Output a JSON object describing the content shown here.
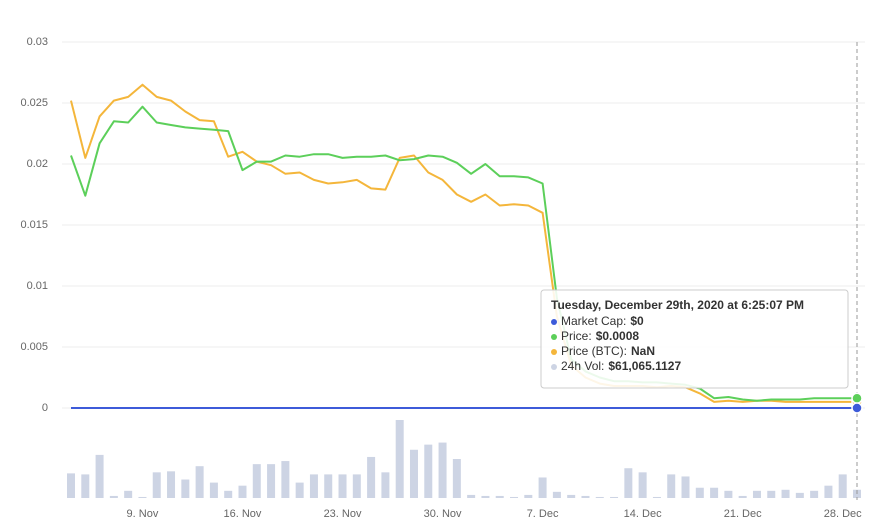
{
  "chart_data": {
    "type": "line",
    "ylim": [
      0,
      0.03
    ],
    "yticks": [
      0,
      0.005,
      0.01,
      0.015,
      0.02,
      0.025,
      0.03
    ],
    "grid": true,
    "categories": [
      null,
      null,
      null,
      null,
      null,
      "9. Nov",
      null,
      null,
      null,
      null,
      null,
      null,
      "16. Nov",
      null,
      null,
      null,
      null,
      null,
      null,
      "23. Nov",
      null,
      null,
      null,
      null,
      null,
      null,
      "30. Nov",
      null,
      null,
      null,
      null,
      null,
      null,
      "7. Dec",
      null,
      null,
      null,
      null,
      null,
      null,
      "14. Dec",
      null,
      null,
      null,
      null,
      null,
      null,
      "21. Dec",
      null,
      null,
      null,
      null,
      null,
      null,
      "28. Dec",
      null
    ],
    "series": [
      {
        "color": "#f4b63b",
        "values": [
          0.0252,
          0.0205,
          0.0239,
          0.0252,
          0.0255,
          0.0265,
          0.0255,
          0.0252,
          0.0243,
          0.0236,
          0.0235,
          0.0206,
          0.021,
          0.0202,
          0.0199,
          0.0192,
          0.0193,
          0.0187,
          0.0184,
          0.0185,
          0.0187,
          0.018,
          0.0179,
          0.0205,
          0.0207,
          0.0193,
          0.0187,
          0.0175,
          0.0169,
          0.0175,
          0.0166,
          0.0167,
          0.0166,
          0.016,
          0.0075,
          0.0035,
          0.0025,
          0.002,
          0.0018,
          0.0018,
          0.0018,
          0.0017,
          0.0018,
          0.0017,
          0.0012,
          0.0005,
          0.0006,
          0.0005,
          0.0006,
          0.0006,
          0.0005,
          0.0005,
          0.0005,
          0.0005,
          0.0005,
          0.0005
        ]
      },
      {
        "color": "#5ccf5a",
        "values": [
          0.0207,
          0.0174,
          0.0217,
          0.0235,
          0.0234,
          0.0247,
          0.0234,
          0.0232,
          0.023,
          0.0229,
          0.0228,
          0.0227,
          0.0195,
          0.0202,
          0.0202,
          0.0207,
          0.0206,
          0.0208,
          0.0208,
          0.0205,
          0.0206,
          0.0206,
          0.0207,
          0.0203,
          0.0204,
          0.0207,
          0.0206,
          0.0201,
          0.0192,
          0.02,
          0.019,
          0.019,
          0.0189,
          0.0184,
          0.009,
          0.004,
          0.003,
          0.0025,
          0.0022,
          0.0022,
          0.0021,
          0.0021,
          0.002,
          0.0019,
          0.0016,
          0.0008,
          0.0009,
          0.0007,
          0.0006,
          0.0007,
          0.0007,
          0.0007,
          0.0008,
          0.0008,
          0.0008,
          0.0008
        ]
      },
      {
        "color": "#3d5bd9",
        "values": [
          0,
          0,
          0,
          0,
          0,
          0,
          0,
          0,
          0,
          0,
          0,
          0,
          0,
          0,
          0,
          0,
          0,
          0,
          0,
          0,
          0,
          0,
          0,
          0,
          0,
          0,
          0,
          0,
          0,
          0,
          0,
          0,
          0,
          0,
          0,
          0,
          0,
          0,
          0,
          0,
          0,
          0,
          0,
          0,
          0,
          0,
          0,
          0,
          0,
          0,
          0,
          0,
          0,
          0,
          0,
          0
        ]
      }
    ],
    "volume": {
      "color": "#cdd4e4",
      "values": [
        182400,
        174800,
        319200,
        15200,
        53200,
        7600,
        190000,
        197600,
        136800,
        235600,
        114000,
        53200,
        91200,
        250800,
        250800,
        273600,
        114000,
        174800,
        174800,
        174800,
        174800,
        304000,
        190000,
        577600,
        357200,
        395200,
        410400,
        288800,
        22800,
        15200,
        15200,
        7600,
        22800,
        152000,
        45600,
        22800,
        15200,
        7600,
        7600,
        220400,
        190000,
        7600,
        174800,
        159600,
        76000,
        76000,
        53200,
        15200,
        53200,
        53200,
        60800,
        38000,
        53200,
        91200,
        174800,
        61065.1127
      ]
    },
    "tooltip": {
      "title": "Tuesday, December 29th, 2020 at 6:25:07 PM",
      "items": [
        {
          "label": "Market Cap:",
          "value": "$0",
          "color": "#3d5bd9"
        },
        {
          "label": "Price:",
          "value": "$0.0008",
          "color": "#5ccf5a"
        },
        {
          "label": "Price (BTC):",
          "value": "NaN",
          "color": "#f4b63b"
        },
        {
          "label": "24h Vol:",
          "value": "$61,065.1127",
          "color": "#cdd4e4"
        }
      ]
    }
  }
}
